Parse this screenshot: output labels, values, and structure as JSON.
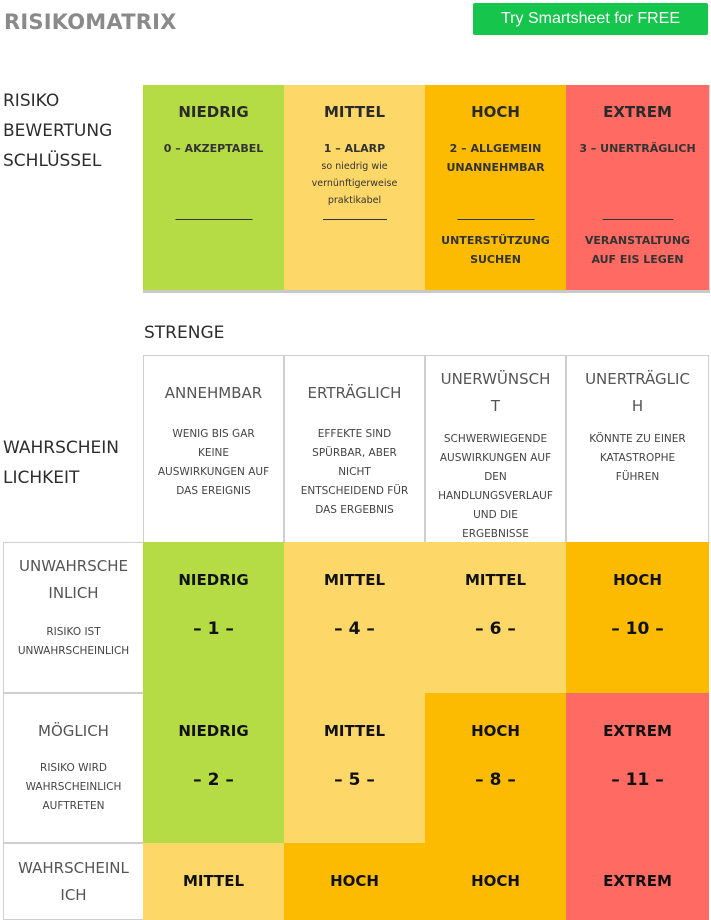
{
  "header": {
    "title": "RISIKOMATRIX",
    "cta_label": "Try Smartsheet for FREE"
  },
  "key": {
    "side_label": [
      "RISIKO",
      "BEWERTUNG",
      "SCHLÜSSEL"
    ],
    "columns": [
      {
        "title": "NIEDRIG",
        "sub": "0 – AKZEPTABEL",
        "note": "",
        "footer": [
          "",
          ""
        ]
      },
      {
        "title": "MITTEL",
        "sub": "1 – ALARP",
        "note": "so niedrig wie vernünftigerweise praktikabel",
        "footer": [
          "",
          ""
        ]
      },
      {
        "title": "HOCH",
        "sub": "2 – ALLGEMEIN UNANNEHMBAR",
        "note": "",
        "footer": [
          "UNTERSTÜTZUNG",
          "SUCHEN"
        ]
      },
      {
        "title": "EXTREM",
        "sub": "3 – UNERTRÄGLICH",
        "note": "",
        "footer": [
          "VERANSTALTUNG",
          "AUF EIS LEGEN"
        ]
      }
    ]
  },
  "severity": {
    "label": "STRENGE",
    "columns": [
      {
        "title": [
          "ANNEHMBAR"
        ],
        "desc": [
          "WENIG BIS GAR",
          "KEINE",
          "AUSWIRKUNGEN AUF",
          "DAS EREIGNIS"
        ]
      },
      {
        "title": [
          "ERTRÄGLICH"
        ],
        "desc": [
          "EFFEKTE SIND",
          "SPÜRBAR, ABER",
          "NICHT",
          "ENTSCHEIDEND FÜR",
          "DAS ERGEBNIS"
        ]
      },
      {
        "title": [
          "UNERWÜNSCH",
          "T"
        ],
        "desc": [
          "SCHWERWIEGENDE",
          "AUSWIRKUNGEN AUF",
          "DEN",
          "HANDLUNGSVERLAUF",
          "UND DIE",
          "ERGEBNISSE"
        ]
      },
      {
        "title": [
          "UNERTRÄGLIC",
          "H"
        ],
        "desc": [
          "KÖNNTE ZU EINER",
          "KATASTROPHE",
          "FÜHREN"
        ]
      }
    ]
  },
  "likelihood": {
    "label": [
      "WAHRSCHEIN",
      "LICHKEIT"
    ],
    "rows": [
      {
        "title": [
          "UNWAHRSCHE",
          "INLICH"
        ],
        "desc": [
          "RISIKO IST",
          "UNWAHRSCHEINLICH"
        ],
        "cells": [
          {
            "level": "NIEDRIG",
            "score": "– 1 –",
            "color": "#b5dc45"
          },
          {
            "level": "MITTEL",
            "score": "– 4 –",
            "color": "#fdd868"
          },
          {
            "level": "MITTEL",
            "score": "– 6 –",
            "color": "#fdd868"
          },
          {
            "level": "HOCH",
            "score": "– 10 –",
            "color": "#fdbb00"
          }
        ]
      },
      {
        "title": [
          "MÖGLICH"
        ],
        "desc": [
          "RISIKO WIRD",
          "WAHRSCHEINLICH",
          "AUFTRETEN"
        ],
        "cells": [
          {
            "level": "NIEDRIG",
            "score": "– 2 –",
            "color": "#b5dc45"
          },
          {
            "level": "MITTEL",
            "score": "– 5 –",
            "color": "#fdd868"
          },
          {
            "level": "HOCH",
            "score": "– 8 –",
            "color": "#fdbb00"
          },
          {
            "level": "EXTREM",
            "score": "– 11 –",
            "color": "#ff6b63"
          }
        ]
      },
      {
        "title": [
          "WAHRSCHEINL",
          "ICH"
        ],
        "desc": [],
        "cells": [
          {
            "level": "MITTEL",
            "score": "",
            "color": "#fdd868"
          },
          {
            "level": "HOCH",
            "score": "",
            "color": "#fdbb00"
          },
          {
            "level": "HOCH",
            "score": "",
            "color": "#fdbb00"
          },
          {
            "level": "EXTREM",
            "score": "",
            "color": "#ff6b63"
          }
        ]
      }
    ]
  }
}
